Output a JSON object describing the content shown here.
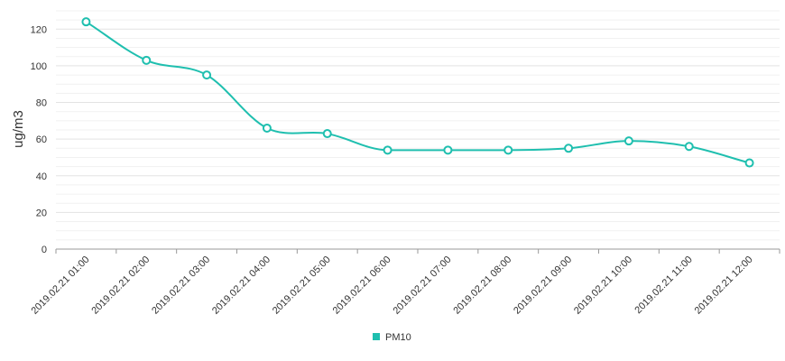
{
  "chart_data": {
    "type": "line",
    "title": "",
    "xlabel": "",
    "ylabel": "ug/m3",
    "ylim": [
      0,
      130
    ],
    "yticks": [
      0,
      20,
      40,
      60,
      80,
      100,
      120
    ],
    "minor_grid_step": 5,
    "grid": true,
    "legend_position": "bottom-center",
    "categories": [
      "2019.02.21 01:00",
      "2019.02.21 02:00",
      "2019.02.21 03:00",
      "2019.02.21 04:00",
      "2019.02.21 05:00",
      "2019.02.21 06:00",
      "2019.02.21 07:00",
      "2019.02.21 08:00",
      "2019.02.21 09:00",
      "2019.02.21 10:00",
      "2019.02.21 11:00",
      "2019.02.21 12:00"
    ],
    "series": [
      {
        "name": "PM10",
        "color": "#1fbfaf",
        "values": [
          124,
          103,
          95,
          66,
          63,
          54,
          54,
          54,
          55,
          59,
          56,
          47
        ]
      }
    ]
  }
}
